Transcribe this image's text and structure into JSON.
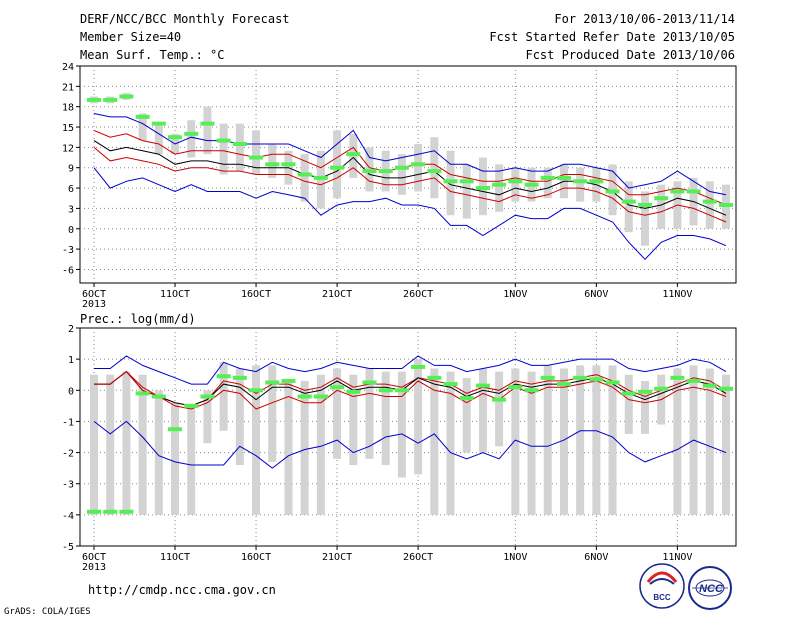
{
  "header": {
    "left": [
      "DERF/NCC/BCC Monthly Forecast",
      "Member Size=40",
      "Mean Surf. Temp.: °C"
    ],
    "right": [
      "For 2013/10/06-2013/11/14",
      "Fcst Started Refer Date 2013/10/05",
      "Fcst Produced Date 2013/10/06"
    ]
  },
  "footer": {
    "url": "http://cmdp.ncc.cma.gov.cn",
    "credit": "GrADS: COLA/IGES",
    "logo_left_text": "BCC",
    "logo_right_text": "NCC"
  },
  "colors": {
    "ensemble_bar": "#d3d3d3",
    "observed": "#55ee55",
    "mean": "#000000",
    "spread": "#cc0000",
    "extreme": "#0000cc",
    "grid": "#888888"
  },
  "chart_data": [
    {
      "type": "line",
      "title": "Mean Surf. Temp.: °C",
      "x": [
        "6OCT",
        "7OCT",
        "8OCT",
        "9OCT",
        "10OCT",
        "11OCT",
        "12OCT",
        "13OCT",
        "14OCT",
        "15OCT",
        "16OCT",
        "17OCT",
        "18OCT",
        "19OCT",
        "20OCT",
        "21OCT",
        "22OCT",
        "23OCT",
        "24OCT",
        "25OCT",
        "26OCT",
        "27OCT",
        "28OCT",
        "29OCT",
        "30OCT",
        "31OCT",
        "1NOV",
        "2NOV",
        "3NOV",
        "4NOV",
        "5NOV",
        "6NOV",
        "7NOV",
        "8NOV",
        "9NOV",
        "10NOV",
        "11NOV",
        "12NOV",
        "13NOV",
        "14NOV"
      ],
      "xtick_labels": [
        "6OCT",
        "11OCT",
        "16OCT",
        "21OCT",
        "26OCT",
        "1NOV",
        "6NOV",
        "11NOV"
      ],
      "xtick_index": [
        0,
        5,
        10,
        15,
        20,
        26,
        31,
        36
      ],
      "year_label": "2013",
      "ylim": [
        -8,
        24
      ],
      "yticks": [
        -6,
        -3,
        0,
        3,
        6,
        9,
        12,
        15,
        18,
        21,
        24
      ],
      "series": [
        {
          "role": "max",
          "values": [
            17.0,
            16.5,
            16.5,
            15.5,
            14.0,
            12.5,
            13.5,
            13.0,
            13.0,
            12.5,
            12.5,
            12.5,
            12.5,
            11.5,
            10.5,
            12.5,
            14.5,
            10.5,
            10.0,
            10.5,
            11.0,
            11.5,
            9.5,
            9.5,
            8.5,
            8.5,
            9.0,
            8.5,
            8.5,
            9.5,
            9.5,
            9.0,
            8.5,
            6.0,
            6.5,
            7.0,
            8.5,
            7.0,
            5.5,
            5.0
          ]
        },
        {
          "role": "upper",
          "values": [
            14.5,
            13.5,
            14.0,
            13.0,
            12.5,
            11.0,
            11.5,
            11.5,
            11.5,
            11.0,
            10.5,
            11.0,
            11.0,
            10.0,
            9.0,
            10.5,
            12.0,
            9.0,
            8.5,
            9.0,
            9.5,
            9.5,
            8.0,
            7.5,
            7.0,
            7.0,
            7.5,
            7.0,
            7.0,
            8.0,
            8.0,
            7.5,
            7.0,
            5.0,
            5.0,
            5.5,
            6.0,
            5.5,
            4.5,
            3.5
          ]
        },
        {
          "role": "mean",
          "values": [
            13.0,
            11.5,
            12.0,
            11.5,
            11.0,
            9.5,
            10.0,
            10.0,
            9.5,
            9.5,
            9.0,
            9.0,
            9.0,
            8.0,
            7.5,
            8.5,
            10.5,
            8.0,
            7.5,
            7.5,
            8.0,
            8.5,
            6.5,
            6.0,
            5.5,
            5.0,
            6.0,
            5.5,
            6.0,
            7.0,
            7.0,
            6.5,
            5.5,
            3.5,
            3.0,
            3.5,
            4.5,
            4.0,
            3.0,
            2.0
          ]
        },
        {
          "role": "lower",
          "values": [
            12.0,
            10.0,
            10.5,
            10.0,
            9.5,
            8.5,
            9.0,
            9.0,
            8.5,
            8.5,
            8.0,
            8.0,
            8.0,
            7.0,
            6.5,
            7.5,
            9.0,
            7.0,
            6.5,
            6.5,
            7.0,
            7.5,
            5.5,
            5.0,
            4.5,
            4.0,
            5.0,
            4.5,
            5.0,
            6.0,
            6.0,
            5.5,
            4.5,
            2.5,
            2.0,
            2.5,
            3.5,
            3.0,
            2.0,
            1.0
          ]
        },
        {
          "role": "min",
          "values": [
            9.0,
            6.0,
            7.0,
            7.5,
            6.5,
            5.5,
            6.5,
            5.5,
            5.5,
            5.5,
            4.5,
            5.5,
            5.0,
            4.5,
            2.0,
            3.5,
            4.0,
            4.0,
            4.5,
            3.5,
            3.5,
            3.0,
            0.5,
            0.5,
            -1.0,
            0.5,
            2.0,
            1.5,
            1.5,
            3.0,
            3.0,
            2.0,
            1.0,
            -2.0,
            -4.5,
            -2.0,
            -1.0,
            -1.0,
            -1.5,
            -2.5
          ]
        }
      ],
      "bars": [
        [
          18.5,
          19.5
        ],
        [
          18.5,
          19.5
        ],
        [
          19.0,
          20.0
        ],
        [
          13.0,
          17.0
        ],
        [
          11.0,
          15.5
        ],
        [
          11.0,
          14.0
        ],
        [
          10.5,
          16.0
        ],
        [
          11.0,
          18.0
        ],
        [
          8.0,
          15.5
        ],
        [
          8.5,
          15.5
        ],
        [
          8.0,
          14.5
        ],
        [
          7.5,
          12.5
        ],
        [
          6.5,
          11.5
        ],
        [
          4.0,
          11.0
        ],
        [
          3.0,
          11.5
        ],
        [
          4.5,
          14.5
        ],
        [
          7.5,
          14.0
        ],
        [
          5.5,
          12.0
        ],
        [
          5.5,
          11.5
        ],
        [
          5.0,
          11.0
        ],
        [
          5.5,
          12.5
        ],
        [
          4.5,
          13.5
        ],
        [
          2.0,
          11.5
        ],
        [
          1.5,
          9.5
        ],
        [
          2.0,
          10.5
        ],
        [
          2.5,
          9.5
        ],
        [
          4.0,
          9.0
        ],
        [
          4.0,
          9.0
        ],
        [
          4.5,
          9.0
        ],
        [
          4.5,
          9.5
        ],
        [
          4.0,
          9.0
        ],
        [
          4.0,
          9.0
        ],
        [
          2.0,
          9.5
        ],
        [
          -0.5,
          7.0
        ],
        [
          -2.5,
          5.5
        ],
        [
          0.0,
          6.5
        ],
        [
          0.0,
          7.0
        ],
        [
          0.5,
          7.5
        ],
        [
          0.0,
          7.0
        ],
        [
          0.0,
          6.5
        ]
      ],
      "observed": [
        19.0,
        19.0,
        19.5,
        16.5,
        15.5,
        13.5,
        14.0,
        15.5,
        13.0,
        12.5,
        10.5,
        9.5,
        9.5,
        8.0,
        7.5,
        9.0,
        11.0,
        8.5,
        8.5,
        9.0,
        9.5,
        8.5,
        7.0,
        7.0,
        6.0,
        6.5,
        7.0,
        6.5,
        7.5,
        7.5,
        7.0,
        7.0,
        5.5,
        4.0,
        3.5,
        4.5,
        5.5,
        5.5,
        4.0,
        3.5
      ]
    },
    {
      "type": "line",
      "title": "Prec.: log(mm/d)",
      "x": [
        "6OCT",
        "7OCT",
        "8OCT",
        "9OCT",
        "10OCT",
        "11OCT",
        "12OCT",
        "13OCT",
        "14OCT",
        "15OCT",
        "16OCT",
        "17OCT",
        "18OCT",
        "19OCT",
        "20OCT",
        "21OCT",
        "22OCT",
        "23OCT",
        "24OCT",
        "25OCT",
        "26OCT",
        "27OCT",
        "28OCT",
        "29OCT",
        "30OCT",
        "31OCT",
        "1NOV",
        "2NOV",
        "3NOV",
        "4NOV",
        "5NOV",
        "6NOV",
        "7NOV",
        "8NOV",
        "9NOV",
        "10NOV",
        "11NOV",
        "12NOV",
        "13NOV",
        "14NOV"
      ],
      "xtick_labels": [
        "6OCT",
        "11OCT",
        "16OCT",
        "21OCT",
        "26OCT",
        "1NOV",
        "6NOV",
        "11NOV"
      ],
      "xtick_index": [
        0,
        5,
        10,
        15,
        20,
        26,
        31,
        36
      ],
      "year_label": "2013",
      "ylim": [
        -5,
        2
      ],
      "yticks": [
        -5,
        -4,
        -3,
        -2,
        -1,
        0,
        1,
        2
      ],
      "series": [
        {
          "role": "max",
          "values": [
            0.7,
            0.7,
            1.1,
            0.8,
            0.6,
            0.4,
            0.2,
            0.2,
            0.9,
            0.7,
            0.6,
            0.9,
            0.7,
            0.6,
            0.7,
            0.9,
            0.8,
            0.7,
            0.7,
            0.7,
            1.1,
            0.8,
            0.8,
            0.6,
            0.7,
            0.8,
            1.0,
            0.8,
            0.8,
            0.9,
            1.0,
            1.0,
            1.0,
            0.7,
            0.6,
            0.7,
            0.8,
            1.0,
            0.9,
            0.6
          ]
        },
        {
          "role": "upper",
          "values": [
            0.2,
            0.2,
            0.6,
            0.1,
            -0.2,
            -0.4,
            -0.5,
            -0.3,
            0.3,
            0.2,
            -0.1,
            0.2,
            0.2,
            0.0,
            0.1,
            0.4,
            0.1,
            0.2,
            0.2,
            0.1,
            0.4,
            0.3,
            0.2,
            -0.1,
            0.1,
            0.0,
            0.3,
            0.2,
            0.3,
            0.3,
            0.4,
            0.5,
            0.3,
            0.0,
            -0.2,
            0.0,
            0.2,
            0.4,
            0.3,
            0.0
          ]
        },
        {
          "role": "mean",
          "values": [
            0.2,
            0.2,
            0.6,
            0.0,
            -0.2,
            -0.4,
            -0.5,
            -0.3,
            0.2,
            0.1,
            -0.3,
            0.1,
            0.1,
            -0.1,
            0.0,
            0.3,
            0.0,
            0.1,
            0.1,
            0.0,
            0.4,
            0.2,
            0.1,
            -0.2,
            0.0,
            -0.1,
            0.2,
            0.1,
            0.2,
            0.2,
            0.3,
            0.4,
            0.2,
            -0.1,
            -0.3,
            -0.1,
            0.1,
            0.3,
            0.2,
            -0.1
          ]
        },
        {
          "role": "lower",
          "values": [
            0.2,
            0.2,
            0.6,
            0.0,
            -0.2,
            -0.5,
            -0.6,
            -0.4,
            0.0,
            -0.1,
            -0.6,
            -0.4,
            -0.2,
            -0.4,
            -0.4,
            0.0,
            -0.2,
            -0.1,
            -0.2,
            -0.2,
            0.3,
            0.0,
            -0.1,
            -0.4,
            -0.1,
            -0.3,
            0.1,
            -0.1,
            0.1,
            0.1,
            0.2,
            0.3,
            0.1,
            -0.3,
            -0.4,
            -0.3,
            0.0,
            0.1,
            0.0,
            -0.2
          ]
        },
        {
          "role": "min",
          "values": [
            -1.0,
            -1.4,
            -1.0,
            -1.5,
            -2.1,
            -2.3,
            -2.4,
            -2.4,
            -2.4,
            -1.8,
            -2.1,
            -2.5,
            -2.1,
            -1.9,
            -1.8,
            -1.6,
            -2.0,
            -1.8,
            -1.5,
            -1.4,
            -1.7,
            -1.4,
            -2.0,
            -2.2,
            -2.0,
            -2.2,
            -1.6,
            -1.8,
            -1.8,
            -1.6,
            -1.3,
            -1.3,
            -1.5,
            -2.0,
            -2.3,
            -2.1,
            -1.9,
            -1.6,
            -1.8,
            -2.0
          ]
        }
      ],
      "bars": [
        [
          -4,
          0.5
        ],
        [
          -4,
          0.5
        ],
        [
          -4,
          0.6
        ],
        [
          -4,
          0.5
        ],
        [
          -4,
          0.0
        ],
        [
          -4,
          -0.4
        ],
        [
          -4,
          -0.5
        ],
        [
          -1.7,
          0.0
        ],
        [
          -1.3,
          0.9
        ],
        [
          -2.4,
          0.7
        ],
        [
          -4,
          0.8
        ],
        [
          -2.3,
          0.8
        ],
        [
          -4,
          0.3
        ],
        [
          -4,
          0.3
        ],
        [
          -4,
          0.5
        ],
        [
          -2.2,
          0.7
        ],
        [
          -2.4,
          0.5
        ],
        [
          -2.2,
          0.7
        ],
        [
          -2.4,
          0.6
        ],
        [
          -2.8,
          0.6
        ],
        [
          -2.7,
          1.0
        ],
        [
          -4,
          0.7
        ],
        [
          -4,
          0.6
        ],
        [
          -2.0,
          0.4
        ],
        [
          -2.0,
          0.7
        ],
        [
          -1.8,
          0.6
        ],
        [
          -4,
          0.7
        ],
        [
          -4,
          0.6
        ],
        [
          -4,
          0.8
        ],
        [
          -4,
          0.7
        ],
        [
          -4,
          0.8
        ],
        [
          -4,
          0.8
        ],
        [
          -4,
          0.8
        ],
        [
          -1.4,
          0.5
        ],
        [
          -1.4,
          0.3
        ],
        [
          -1.1,
          0.5
        ],
        [
          -4,
          0.7
        ],
        [
          -4,
          0.8
        ],
        [
          -4,
          0.7
        ],
        [
          -4,
          0.5
        ]
      ],
      "observed": [
        -3.9,
        -3.9,
        -3.9,
        -0.1,
        -0.2,
        -1.25,
        -0.5,
        -0.2,
        0.45,
        0.4,
        0.0,
        0.25,
        0.3,
        -0.2,
        -0.2,
        0.1,
        -0.05,
        0.25,
        0.0,
        0.0,
        0.75,
        0.4,
        0.2,
        -0.25,
        0.15,
        -0.3,
        0.1,
        0.0,
        0.4,
        0.2,
        0.4,
        0.35,
        0.25,
        -0.1,
        -0.05,
        0.05,
        0.4,
        0.3,
        0.15,
        0.05
      ]
    }
  ]
}
